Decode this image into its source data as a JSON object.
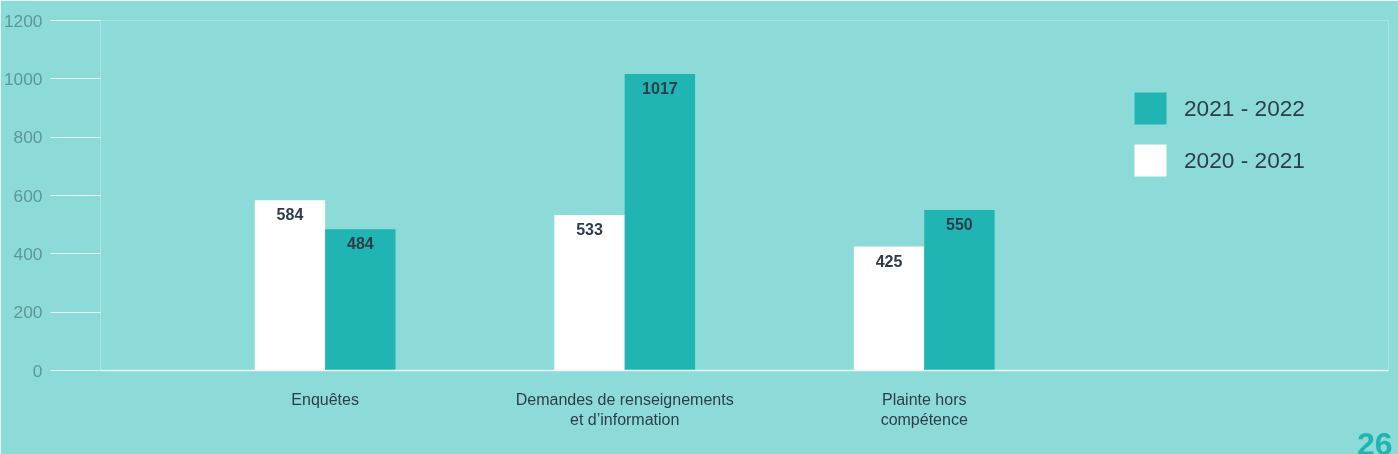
{
  "chart_data": {
    "type": "bar",
    "categories": [
      "Enquêtes",
      "Demandes de renseignements\net d’information",
      "Plainte hors\ncompétence"
    ],
    "series": [
      {
        "name": "2020 - 2021",
        "color": "#ffffff",
        "values": [
          584,
          533,
          425
        ]
      },
      {
        "name": "2021 - 2022",
        "color": "#20b5b3",
        "values": [
          484,
          1017,
          550
        ]
      }
    ],
    "ylim": [
      0,
      1200
    ],
    "yticks": [
      0,
      200,
      400,
      600,
      800,
      1000,
      1200
    ],
    "data_labels": true,
    "legend": "right",
    "grid": false,
    "annotations": [
      "26"
    ]
  }
}
